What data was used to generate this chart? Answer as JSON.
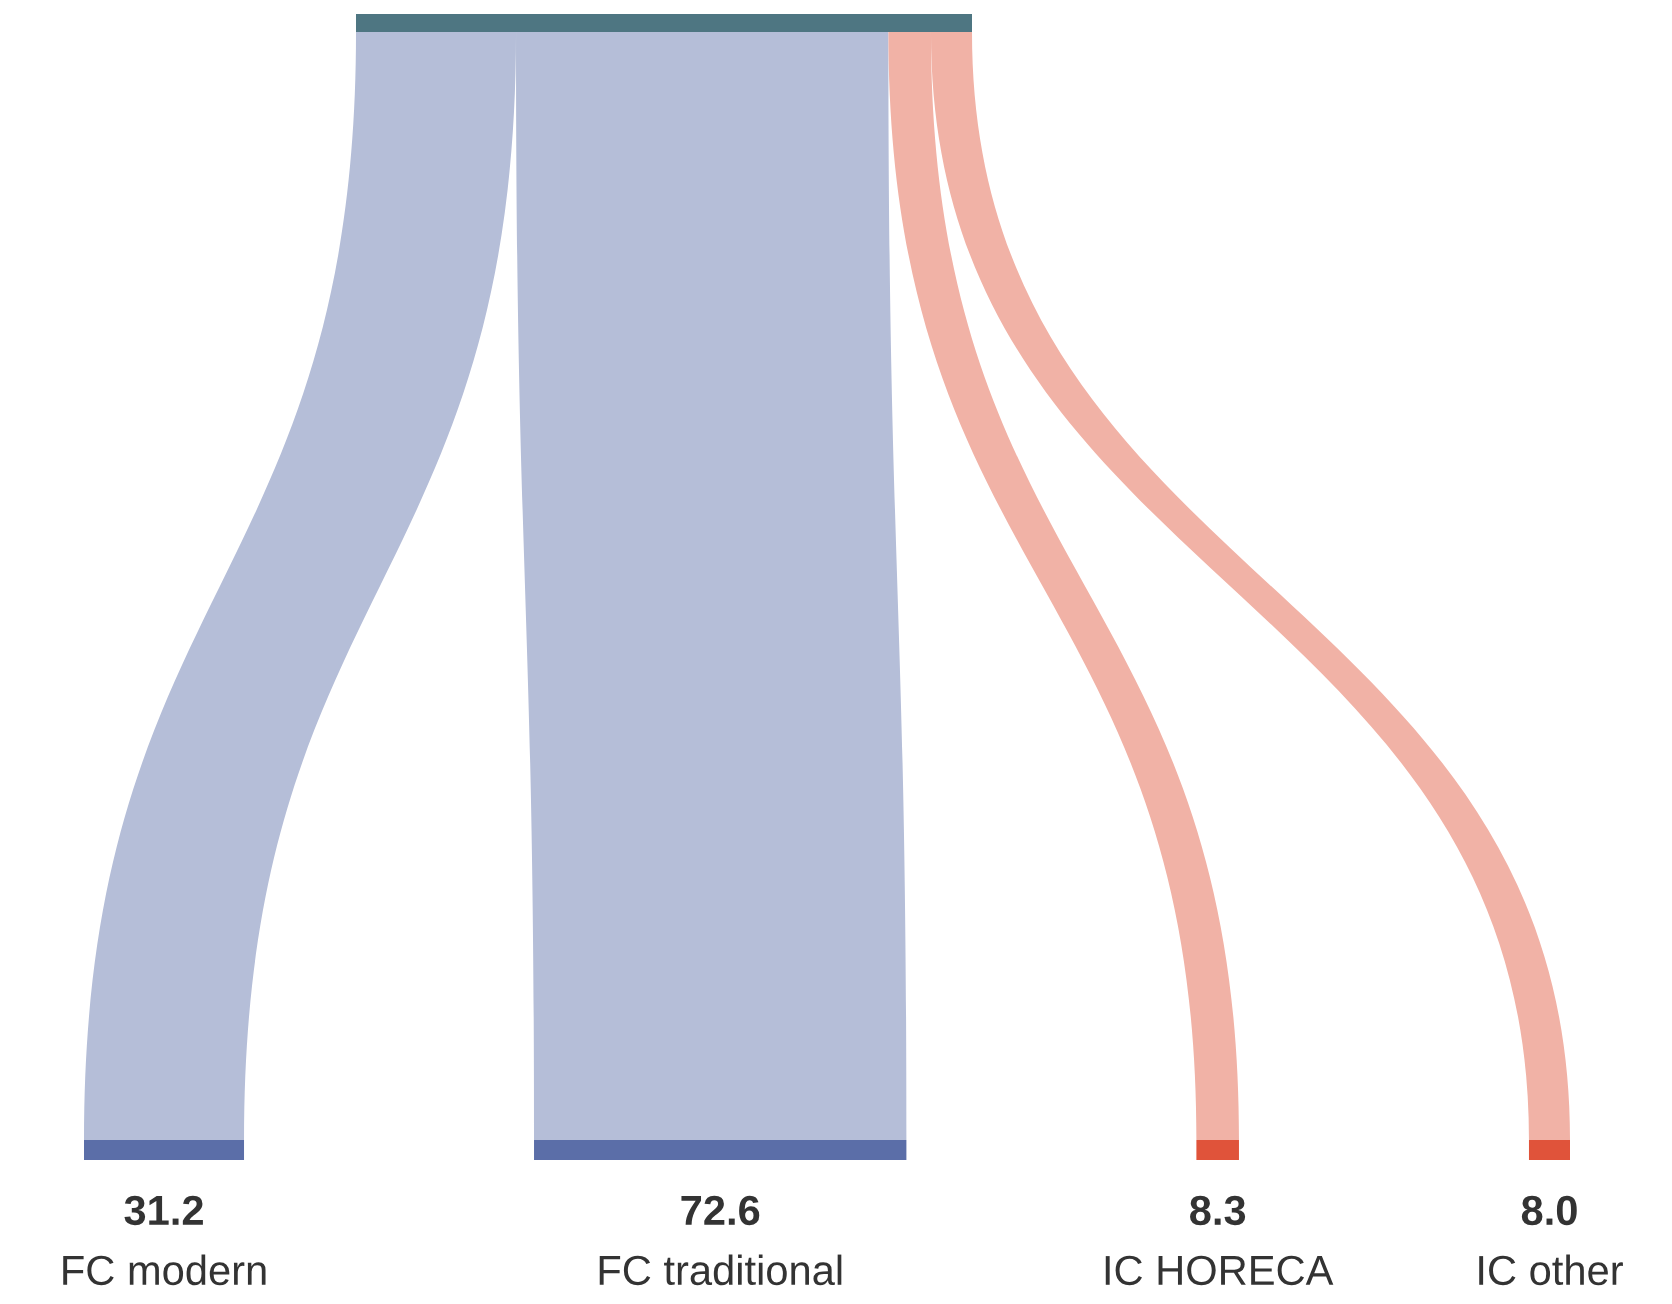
{
  "chart_data": {
    "type": "other",
    "categories": [
      "FC modern",
      "FC traditional",
      "IC HORECA",
      "IC other"
    ],
    "values": [
      31.2,
      72.6,
      8.3,
      8.0
    ],
    "colors": [
      "#5b6ea8",
      "#5b6ea8",
      "#e0533a",
      "#e0533a"
    ],
    "color": "#4e7682",
    "value_labels": [
      "31.2",
      "72.6",
      "8.3",
      "8.0"
    ]
  }
}
